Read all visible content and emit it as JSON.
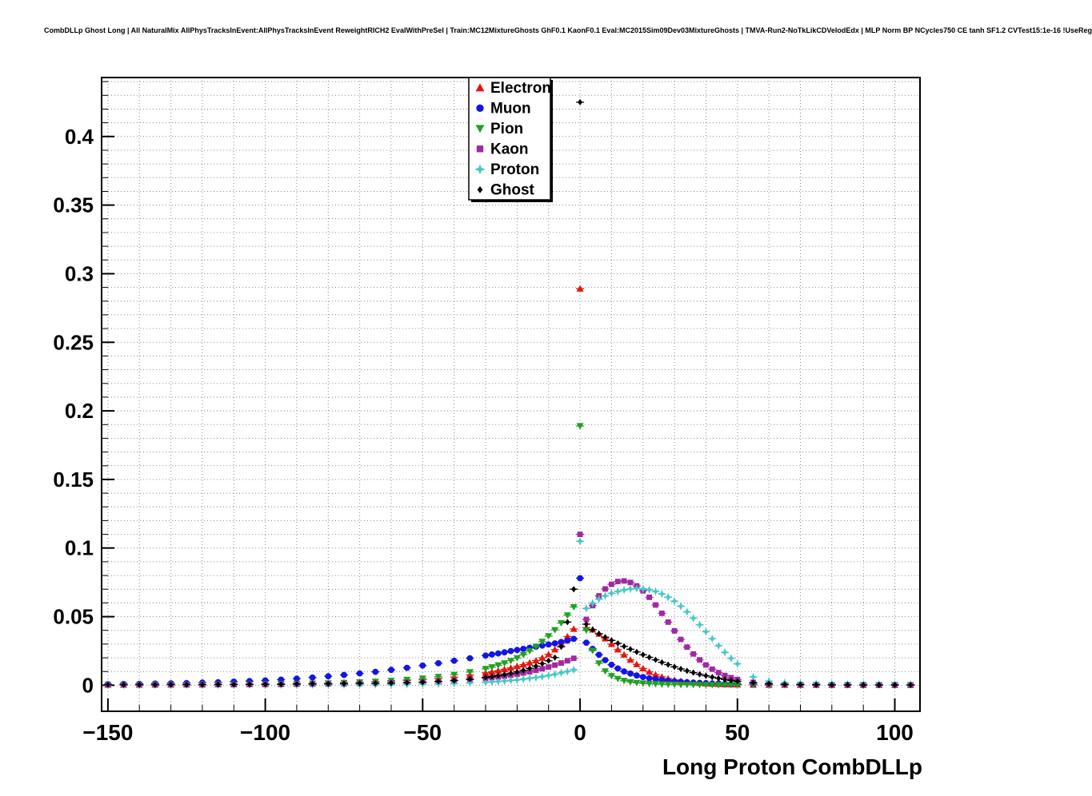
{
  "chart_data": {
    "type": "scatter",
    "title": "CombDLLp Ghost Long | All NaturalMix AllPhysTracksInEvent:AllPhysTracksInEvent ReweightRICH2 EvalWithPreSel | Train:MC12MixtureGhosts GhF0.1 KaonF0.1 Eval:MC2015Sim09Dev03MixtureGhosts | TMVA-Run2-NoTkLikCDVelodEdx | MLP Norm BP NCycles750 CE tanh SF1.2 CVTest15:1e-16 !UseReg",
    "xlabel": "Long Proton CombDLLp",
    "ylabel": "",
    "xlim": [
      -152,
      108
    ],
    "ylim": [
      -0.019,
      0.443
    ],
    "x_ticks_major": [
      -150,
      -100,
      -50,
      0,
      50,
      100
    ],
    "x_tick_labels": [
      "−150",
      "−100",
      "−50",
      "0",
      "50",
      "100"
    ],
    "x_minor_step": 10,
    "y_ticks_major": [
      0,
      0.05,
      0.1,
      0.15,
      0.2,
      0.25,
      0.3,
      0.35,
      0.4
    ],
    "y_tick_labels": [
      "0",
      "0.05",
      "0.1",
      "0.15",
      "0.2",
      "0.25",
      "0.3",
      "0.35",
      "0.4"
    ],
    "y_minor_step": 0.01,
    "grid": true,
    "legend_position": "top-center",
    "x": [
      -150,
      -145,
      -140,
      -135,
      -130,
      -125,
      -120,
      -115,
      -110,
      -105,
      -100,
      -95,
      -90,
      -85,
      -80,
      -75,
      -70,
      -65,
      -60,
      -55,
      -50,
      -45,
      -40,
      -35,
      -30,
      -28,
      -26,
      -24,
      -22,
      -20,
      -18,
      -16,
      -14,
      -12,
      -10,
      -8,
      -6,
      -4,
      -2,
      0,
      2,
      4,
      6,
      8,
      10,
      12,
      14,
      16,
      18,
      20,
      22,
      24,
      26,
      28,
      30,
      32,
      34,
      36,
      38,
      40,
      42,
      44,
      46,
      48,
      50,
      55,
      60,
      65,
      70,
      75,
      80,
      85,
      90,
      95,
      100,
      105
    ],
    "series": [
      {
        "name": "Electron",
        "color": "#e8150c",
        "marker": "triangle-up",
        "values": [
          0.0003,
          0.0003,
          0.0003,
          0.0004,
          0.0004,
          0.0005,
          0.0005,
          0.0006,
          0.0007,
          0.0008,
          0.0009,
          0.001,
          0.0012,
          0.0014,
          0.0016,
          0.0019,
          0.0022,
          0.0026,
          0.003,
          0.0035,
          0.004,
          0.005,
          0.006,
          0.0075,
          0.009,
          0.0098,
          0.0106,
          0.0116,
          0.0126,
          0.0138,
          0.015,
          0.0165,
          0.018,
          0.02,
          0.0225,
          0.026,
          0.0305,
          0.0355,
          0.041,
          0.289,
          0.042,
          0.0405,
          0.0375,
          0.034,
          0.03,
          0.026,
          0.0222,
          0.0185,
          0.0152,
          0.0122,
          0.0097,
          0.0077,
          0.0061,
          0.0048,
          0.0038,
          0.003,
          0.0024,
          0.0019,
          0.0015,
          0.0012,
          0.001,
          0.0008,
          0.0006,
          0.0005,
          0.0004,
          0.0003,
          0.0002,
          0.0002,
          0.0001,
          0.0001,
          0.0001,
          0.0001,
          0.0001,
          0.0001,
          0.0001,
          0.0001
        ]
      },
      {
        "name": "Muon",
        "color": "#1414e8",
        "marker": "circle",
        "values": [
          0.0008,
          0.0009,
          0.001,
          0.0012,
          0.0014,
          0.0016,
          0.0019,
          0.0022,
          0.0026,
          0.003,
          0.0035,
          0.0041,
          0.0048,
          0.0056,
          0.0065,
          0.0075,
          0.0086,
          0.0098,
          0.0112,
          0.0127,
          0.0143,
          0.016,
          0.0178,
          0.0197,
          0.0216,
          0.0224,
          0.0232,
          0.024,
          0.0249,
          0.0257,
          0.0265,
          0.0273,
          0.0281,
          0.0289,
          0.0297,
          0.0305,
          0.0315,
          0.0325,
          0.0338,
          0.078,
          0.031,
          0.0265,
          0.0222,
          0.0183,
          0.0149,
          0.0122,
          0.0101,
          0.0085,
          0.0071,
          0.006,
          0.0051,
          0.0044,
          0.0038,
          0.0033,
          0.0028,
          0.0025,
          0.0022,
          0.0019,
          0.0017,
          0.0015,
          0.0013,
          0.0012,
          0.0011,
          0.001,
          0.0009,
          0.0007,
          0.0006,
          0.0005,
          0.0004,
          0.0004,
          0.0003,
          0.0003,
          0.0003,
          0.0002,
          0.0002,
          0.0002
        ]
      },
      {
        "name": "Pion",
        "color": "#22a022",
        "marker": "triangle-down",
        "values": [
          0.0002,
          0.0002,
          0.0002,
          0.0003,
          0.0003,
          0.0003,
          0.0004,
          0.0004,
          0.0005,
          0.0006,
          0.0008,
          0.0009,
          0.0011,
          0.0013,
          0.0015,
          0.0018,
          0.0022,
          0.0027,
          0.0033,
          0.004,
          0.005,
          0.0062,
          0.0077,
          0.0096,
          0.012,
          0.0132,
          0.0146,
          0.0161,
          0.0178,
          0.0198,
          0.0222,
          0.025,
          0.0282,
          0.0318,
          0.0358,
          0.0403,
          0.0453,
          0.051,
          0.057,
          0.189,
          0.04,
          0.0252,
          0.016,
          0.0102,
          0.0068,
          0.0047,
          0.0033,
          0.0024,
          0.0018,
          0.0014,
          0.0011,
          0.0009,
          0.0007,
          0.0006,
          0.0005,
          0.0004,
          0.0004,
          0.0003,
          0.0003,
          0.0003,
          0.0002,
          0.0002,
          0.0002,
          0.0002,
          0.0002,
          0.0002,
          0.0001,
          0.0001,
          0.0001,
          0.0001,
          0.0001,
          0.0001,
          0.0001,
          0.0001,
          0.0001,
          0.0001
        ]
      },
      {
        "name": "Kaon",
        "color": "#a228a2",
        "marker": "square",
        "values": [
          0.0002,
          0.0002,
          0.0002,
          0.0002,
          0.0003,
          0.0003,
          0.0003,
          0.0004,
          0.0004,
          0.0005,
          0.0005,
          0.0006,
          0.0007,
          0.0008,
          0.0009,
          0.001,
          0.0012,
          0.0014,
          0.0016,
          0.0019,
          0.0022,
          0.0027,
          0.0033,
          0.004,
          0.005,
          0.0055,
          0.006,
          0.0066,
          0.0073,
          0.008,
          0.0089,
          0.0098,
          0.0109,
          0.012,
          0.0133,
          0.0147,
          0.0162,
          0.0178,
          0.0196,
          0.11,
          0.048,
          0.058,
          0.0651,
          0.0702,
          0.0736,
          0.0756,
          0.076,
          0.0749,
          0.0724,
          0.0688,
          0.0641,
          0.0585,
          0.0524,
          0.046,
          0.0396,
          0.0334,
          0.0278,
          0.0228,
          0.0185,
          0.0148,
          0.0117,
          0.0092,
          0.0071,
          0.0055,
          0.0042,
          0.0021,
          0.001,
          0.0006,
          0.0004,
          0.0003,
          0.0002,
          0.0002,
          0.0002,
          0.0001,
          0.0001,
          0.0001
        ]
      },
      {
        "name": "Proton",
        "color": "#49c7c7",
        "marker": "star",
        "values": [
          0.0002,
          0.0002,
          0.0002,
          0.0002,
          0.0002,
          0.0002,
          0.0002,
          0.0002,
          0.0003,
          0.0003,
          0.0003,
          0.0003,
          0.0003,
          0.0004,
          0.0004,
          0.0004,
          0.0004,
          0.0005,
          0.0005,
          0.0006,
          0.0008,
          0.001,
          0.0013,
          0.0017,
          0.0022,
          0.0025,
          0.0028,
          0.0031,
          0.0035,
          0.0039,
          0.0044,
          0.005,
          0.0056,
          0.0063,
          0.0071,
          0.008,
          0.009,
          0.0101,
          0.0113,
          0.105,
          0.056,
          0.0598,
          0.0628,
          0.0652,
          0.067,
          0.0684,
          0.0695,
          0.0702,
          0.0705,
          0.0703,
          0.0696,
          0.0684,
          0.0666,
          0.0642,
          0.0612,
          0.0576,
          0.0535,
          0.0489,
          0.0441,
          0.039,
          0.0339,
          0.0288,
          0.024,
          0.0196,
          0.0156,
          0.006,
          0.003,
          0.0018,
          0.0013,
          0.001,
          0.0009,
          0.0008,
          0.0008,
          0.0007,
          0.0007,
          0.0006
        ]
      },
      {
        "name": "Ghost",
        "color": "#000000",
        "marker": "diamond",
        "values": [
          0.0003,
          0.0003,
          0.0003,
          0.0003,
          0.0004,
          0.0004,
          0.0004,
          0.0005,
          0.0005,
          0.0006,
          0.0006,
          0.0007,
          0.0008,
          0.0009,
          0.001,
          0.0011,
          0.0013,
          0.0014,
          0.0016,
          0.0018,
          0.0022,
          0.0027,
          0.0034,
          0.0044,
          0.0057,
          0.0063,
          0.007,
          0.0078,
          0.0087,
          0.0097,
          0.0109,
          0.0123,
          0.0139,
          0.0157,
          0.0178,
          0.0202,
          0.028,
          0.046,
          0.07,
          0.425,
          0.0445,
          0.0405,
          0.0375,
          0.035,
          0.0327,
          0.0305,
          0.0283,
          0.0262,
          0.0242,
          0.0222,
          0.0203,
          0.0185,
          0.0167,
          0.015,
          0.0134,
          0.0119,
          0.0105,
          0.0092,
          0.008,
          0.0069,
          0.0059,
          0.005,
          0.0042,
          0.0035,
          0.0029,
          0.0018,
          0.0011,
          0.0007,
          0.0005,
          0.0004,
          0.0003,
          0.0003,
          0.0002,
          0.0002,
          0.0002,
          0.0002
        ]
      }
    ]
  }
}
